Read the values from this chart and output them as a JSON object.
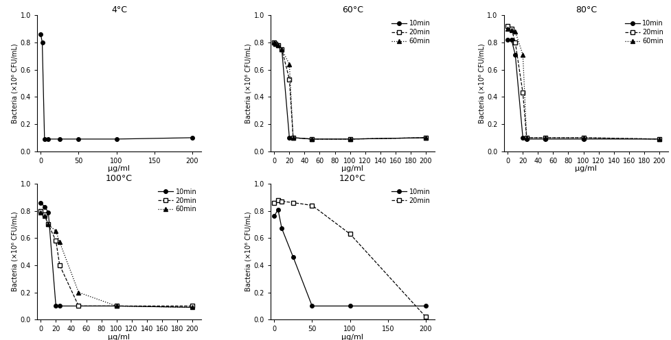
{
  "panels": [
    {
      "title": "4°C",
      "series": [
        {
          "label": null,
          "x": [
            0,
            2,
            5,
            10,
            25,
            50,
            100,
            200
          ],
          "y": [
            0.86,
            0.8,
            0.09,
            0.09,
            0.09,
            0.09,
            0.09,
            0.1
          ],
          "marker": "o",
          "linestyle": "-",
          "fillstyle": "full"
        }
      ],
      "xticks": [
        0,
        50,
        100,
        150,
        200
      ],
      "legend": false
    },
    {
      "title": "60°C",
      "series": [
        {
          "label": "10min",
          "x": [
            0,
            2,
            5,
            10,
            20,
            25,
            50,
            100,
            200
          ],
          "y": [
            0.8,
            0.79,
            0.78,
            0.75,
            0.1,
            0.1,
            0.09,
            0.09,
            0.1
          ],
          "marker": "o",
          "linestyle": "-",
          "fillstyle": "full"
        },
        {
          "label": "20min",
          "x": [
            0,
            2,
            5,
            10,
            20,
            25,
            50,
            100,
            200
          ],
          "y": [
            0.8,
            0.79,
            0.78,
            0.75,
            0.53,
            0.1,
            0.09,
            0.09,
            0.1
          ],
          "marker": "s",
          "linestyle": "--",
          "fillstyle": "none"
        },
        {
          "label": "60min",
          "x": [
            0,
            2,
            5,
            10,
            20,
            25,
            50,
            100,
            200
          ],
          "y": [
            0.8,
            0.79,
            0.78,
            0.75,
            0.64,
            0.1,
            0.09,
            0.09,
            0.1
          ],
          "marker": "^",
          "linestyle": ":",
          "fillstyle": "full"
        }
      ],
      "xticks": [
        0,
        20,
        40,
        60,
        80,
        100,
        120,
        140,
        160,
        180,
        200
      ],
      "legend": true
    },
    {
      "title": "80°C",
      "series": [
        {
          "label": "10min",
          "x": [
            0,
            5,
            10,
            20,
            25,
            50,
            100,
            200
          ],
          "y": [
            0.82,
            0.82,
            0.71,
            0.1,
            0.09,
            0.09,
            0.09,
            0.09
          ],
          "marker": "o",
          "linestyle": "-",
          "fillstyle": "full"
        },
        {
          "label": "20min",
          "x": [
            0,
            5,
            10,
            20,
            25,
            50,
            100,
            200
          ],
          "y": [
            0.92,
            0.9,
            0.8,
            0.43,
            0.1,
            0.1,
            0.1,
            0.09
          ],
          "marker": "s",
          "linestyle": "--",
          "fillstyle": "none"
        },
        {
          "label": "60min",
          "x": [
            0,
            5,
            10,
            20,
            25,
            50,
            100,
            200
          ],
          "y": [
            0.9,
            0.89,
            0.88,
            0.71,
            0.1,
            0.1,
            0.1,
            0.09
          ],
          "marker": "^",
          "linestyle": ":",
          "fillstyle": "full"
        }
      ],
      "xticks": [
        0,
        20,
        40,
        60,
        80,
        100,
        120,
        140,
        160,
        180,
        200
      ],
      "legend": true
    },
    {
      "title": "100°C",
      "series": [
        {
          "label": "10min",
          "x": [
            0,
            5,
            10,
            20,
            25,
            50,
            100,
            200
          ],
          "y": [
            0.86,
            0.83,
            0.79,
            0.1,
            0.1,
            0.1,
            0.1,
            0.09
          ],
          "marker": "o",
          "linestyle": "-",
          "fillstyle": "full"
        },
        {
          "label": "20min",
          "x": [
            0,
            5,
            10,
            20,
            25,
            50,
            100,
            200
          ],
          "y": [
            0.8,
            0.77,
            0.7,
            0.58,
            0.4,
            0.1,
            0.1,
            0.1
          ],
          "marker": "s",
          "linestyle": "--",
          "fillstyle": "none"
        },
        {
          "label": "60min",
          "x": [
            0,
            5,
            10,
            20,
            25,
            50,
            100,
            200
          ],
          "y": [
            0.79,
            0.76,
            0.7,
            0.65,
            0.57,
            0.2,
            0.1,
            0.09
          ],
          "marker": "^",
          "linestyle": ":",
          "fillstyle": "full"
        }
      ],
      "xticks": [
        0,
        20,
        40,
        60,
        80,
        100,
        120,
        140,
        160,
        180,
        200
      ],
      "legend": true
    },
    {
      "title": "120°C",
      "series": [
        {
          "label": "10min",
          "x": [
            0,
            5,
            10,
            25,
            50,
            100,
            200
          ],
          "y": [
            0.76,
            0.81,
            0.67,
            0.46,
            0.1,
            0.1,
            0.1
          ],
          "marker": "o",
          "linestyle": "-",
          "fillstyle": "full"
        },
        {
          "label": "20min",
          "x": [
            0,
            5,
            10,
            25,
            50,
            100,
            200
          ],
          "y": [
            0.86,
            0.88,
            0.87,
            0.86,
            0.84,
            0.63,
            0.02
          ],
          "marker": "s",
          "linestyle": "--",
          "fillstyle": "none"
        }
      ],
      "xticks": [
        0,
        50,
        100,
        150,
        200
      ],
      "legend": true
    }
  ],
  "ylabel": "Bacteria (×10⁶ CFU/mL)",
  "xlabel": "μg/ml",
  "ylim": [
    0.0,
    1.0
  ],
  "yticks": [
    0.0,
    0.2,
    0.4,
    0.6,
    0.8,
    1.0
  ],
  "background_color": "#ffffff",
  "fontsize": 8,
  "title_fontsize": 9,
  "marker_size": 4,
  "linewidth": 0.9
}
